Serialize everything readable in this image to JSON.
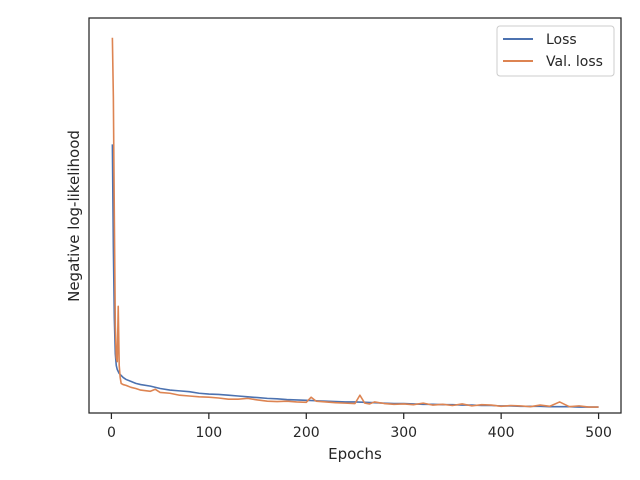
{
  "chart_data": {
    "type": "line",
    "xlabel": "Epochs",
    "ylabel": "Negative log-likelihood",
    "xlim": [
      -23,
      523
    ],
    "ylim": [
      0.0,
      1.0
    ],
    "x_ticks": [
      0,
      100,
      200,
      300,
      400,
      500
    ],
    "x_tick_labels": [
      "0",
      "100",
      "200",
      "300",
      "400",
      "500"
    ],
    "y_tick_labels": [],
    "grid": false,
    "legend_position": "top-right",
    "series": [
      {
        "name": "Loss",
        "color": "#4c72b0",
        "x": [
          1,
          2,
          3,
          4,
          5,
          6,
          7,
          8,
          10,
          12,
          15,
          20,
          25,
          30,
          40,
          50,
          60,
          70,
          80,
          90,
          100,
          110,
          120,
          130,
          140,
          150,
          160,
          170,
          180,
          190,
          200,
          210,
          220,
          230,
          240,
          250,
          260,
          270,
          280,
          290,
          300,
          310,
          320,
          330,
          340,
          350,
          360,
          370,
          380,
          390,
          400,
          410,
          420,
          430,
          440,
          450,
          460,
          470,
          480,
          490,
          500
        ],
        "values": [
          0.68,
          0.42,
          0.24,
          0.15,
          0.12,
          0.11,
          0.105,
          0.1,
          0.095,
          0.09,
          0.085,
          0.08,
          0.075,
          0.072,
          0.068,
          0.062,
          0.058,
          0.056,
          0.054,
          0.05,
          0.048,
          0.047,
          0.045,
          0.043,
          0.041,
          0.039,
          0.037,
          0.036,
          0.034,
          0.033,
          0.032,
          0.031,
          0.03,
          0.029,
          0.028,
          0.028,
          0.027,
          0.026,
          0.025,
          0.024,
          0.024,
          0.023,
          0.022,
          0.022,
          0.021,
          0.021,
          0.02,
          0.02,
          0.019,
          0.019,
          0.018,
          0.018,
          0.017,
          0.017,
          0.017,
          0.016,
          0.016,
          0.016,
          0.015,
          0.015,
          0.015
        ]
      },
      {
        "name": "Val. loss",
        "color": "#dd8452",
        "x": [
          1,
          2,
          3,
          4,
          5,
          6,
          7,
          8,
          9,
          10,
          12,
          15,
          20,
          25,
          30,
          40,
          45,
          50,
          60,
          70,
          80,
          90,
          100,
          110,
          120,
          130,
          140,
          150,
          160,
          170,
          180,
          190,
          200,
          205,
          210,
          220,
          230,
          240,
          250,
          255,
          260,
          265,
          270,
          280,
          290,
          300,
          310,
          320,
          330,
          340,
          350,
          360,
          370,
          380,
          390,
          400,
          410,
          420,
          430,
          440,
          450,
          460,
          470,
          480,
          490,
          500
        ],
        "values": [
          0.95,
          0.8,
          0.5,
          0.22,
          0.14,
          0.13,
          0.27,
          0.12,
          0.09,
          0.075,
          0.072,
          0.07,
          0.065,
          0.062,
          0.058,
          0.055,
          0.06,
          0.052,
          0.05,
          0.045,
          0.043,
          0.041,
          0.04,
          0.038,
          0.035,
          0.035,
          0.037,
          0.033,
          0.03,
          0.029,
          0.03,
          0.028,
          0.027,
          0.04,
          0.03,
          0.028,
          0.026,
          0.025,
          0.024,
          0.045,
          0.025,
          0.023,
          0.028,
          0.024,
          0.022,
          0.023,
          0.021,
          0.025,
          0.02,
          0.022,
          0.019,
          0.023,
          0.018,
          0.021,
          0.02,
          0.017,
          0.019,
          0.018,
          0.016,
          0.02,
          0.017,
          0.028,
          0.016,
          0.018,
          0.015,
          0.015
        ]
      }
    ]
  }
}
